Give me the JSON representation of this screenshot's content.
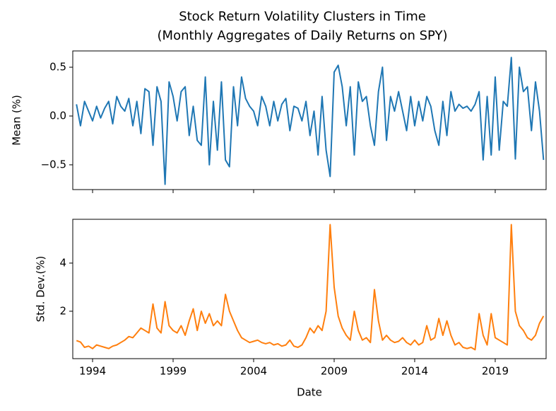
{
  "title": "Stock Return Volatility Clusters in Time",
  "subtitle": "(Monthly Aggregates of Daily Returns on SPY)",
  "chart_data": [
    {
      "type": "line",
      "ylabel": "Mean (%)",
      "x": [
        1993,
        1993.25,
        1993.5,
        1993.75,
        1994,
        1994.25,
        1994.5,
        1994.75,
        1995,
        1995.25,
        1995.5,
        1995.75,
        1996,
        1996.25,
        1996.5,
        1996.75,
        1997,
        1997.25,
        1997.5,
        1997.75,
        1998,
        1998.25,
        1998.5,
        1998.75,
        1999,
        1999.25,
        1999.5,
        1999.75,
        2000,
        2000.25,
        2000.5,
        2000.75,
        2001,
        2001.25,
        2001.5,
        2001.75,
        2002,
        2002.25,
        2002.5,
        2002.75,
        2003,
        2003.25,
        2003.5,
        2003.75,
        2004,
        2004.25,
        2004.5,
        2004.75,
        2005,
        2005.25,
        2005.5,
        2005.75,
        2006,
        2006.25,
        2006.5,
        2006.75,
        2007,
        2007.25,
        2007.5,
        2007.75,
        2008,
        2008.25,
        2008.5,
        2008.75,
        2009,
        2009.25,
        2009.5,
        2009.75,
        2010,
        2010.25,
        2010.5,
        2010.75,
        2011,
        2011.25,
        2011.5,
        2011.75,
        2012,
        2012.25,
        2012.5,
        2012.75,
        2013,
        2013.25,
        2013.5,
        2013.75,
        2014,
        2014.25,
        2014.5,
        2014.75,
        2015,
        2015.25,
        2015.5,
        2015.75,
        2016,
        2016.25,
        2016.5,
        2016.75,
        2017,
        2017.25,
        2017.5,
        2017.75,
        2018,
        2018.25,
        2018.5,
        2018.75,
        2019,
        2019.25,
        2019.5,
        2019.75,
        2020,
        2020.25,
        2020.5,
        2020.75,
        2021,
        2021.25,
        2021.5,
        2021.75,
        2022
      ],
      "series": [
        {
          "name": "Mean",
          "color": "#1f77b4",
          "values": [
            0.12,
            -0.1,
            0.15,
            0.05,
            -0.05,
            0.1,
            -0.02,
            0.08,
            0.15,
            -0.08,
            0.2,
            0.1,
            0.05,
            0.18,
            -0.1,
            0.15,
            -0.18,
            0.28,
            0.25,
            -0.3,
            0.3,
            0.15,
            -0.7,
            0.35,
            0.2,
            -0.05,
            0.25,
            0.3,
            -0.2,
            0.1,
            -0.25,
            -0.3,
            0.4,
            -0.5,
            0.15,
            -0.35,
            0.35,
            -0.45,
            -0.52,
            0.3,
            -0.1,
            0.4,
            0.18,
            0.1,
            0.05,
            -0.1,
            0.2,
            0.1,
            -0.1,
            0.15,
            -0.05,
            0.12,
            0.18,
            -0.15,
            0.1,
            0.08,
            -0.05,
            0.15,
            -0.2,
            0.05,
            -0.4,
            0.2,
            -0.35,
            -0.62,
            0.45,
            0.52,
            0.3,
            -0.1,
            0.3,
            -0.4,
            0.35,
            0.15,
            0.2,
            -0.1,
            -0.3,
            0.25,
            0.5,
            -0.25,
            0.2,
            0.05,
            0.25,
            0.05,
            -0.15,
            0.2,
            -0.1,
            0.15,
            -0.05,
            0.2,
            0.1,
            -0.15,
            -0.3,
            0.15,
            -0.2,
            0.25,
            0.05,
            0.12,
            0.08,
            0.1,
            0.05,
            0.12,
            0.25,
            -0.45,
            0.2,
            -0.4,
            0.4,
            -0.35,
            0.15,
            0.1,
            0.6,
            -0.44,
            0.5,
            0.25,
            0.3,
            -0.15,
            0.35,
            0.05,
            -0.45
          ]
        }
      ],
      "xlim": [
        1992.77,
        2022.16
      ],
      "xticks": [
        1994,
        1999,
        2004,
        2009,
        2014,
        2019
      ],
      "ylim": [
        -0.754,
        0.667
      ],
      "yticks": [
        {
          "value": -0.5,
          "label": "−0.5"
        },
        {
          "value": 0,
          "label": "0.0"
        },
        0.5
      ]
    },
    {
      "type": "line",
      "ylabel": "Std. Dev.(%)",
      "xlabel": "Date",
      "x": [
        1993,
        1993.25,
        1993.5,
        1993.75,
        1994,
        1994.25,
        1994.5,
        1994.75,
        1995,
        1995.25,
        1995.5,
        1995.75,
        1996,
        1996.25,
        1996.5,
        1996.75,
        1997,
        1997.25,
        1997.5,
        1997.75,
        1998,
        1998.25,
        1998.5,
        1998.75,
        1999,
        1999.25,
        1999.5,
        1999.75,
        2000,
        2000.25,
        2000.5,
        2000.75,
        2001,
        2001.25,
        2001.5,
        2001.75,
        2002,
        2002.25,
        2002.5,
        2002.75,
        2003,
        2003.25,
        2003.5,
        2003.75,
        2004,
        2004.25,
        2004.5,
        2004.75,
        2005,
        2005.25,
        2005.5,
        2005.75,
        2006,
        2006.25,
        2006.5,
        2006.75,
        2007,
        2007.25,
        2007.5,
        2007.75,
        2008,
        2008.25,
        2008.5,
        2008.75,
        2009,
        2009.25,
        2009.5,
        2009.75,
        2010,
        2010.25,
        2010.5,
        2010.75,
        2011,
        2011.25,
        2011.5,
        2011.75,
        2012,
        2012.25,
        2012.5,
        2012.75,
        2013,
        2013.25,
        2013.5,
        2013.75,
        2014,
        2014.25,
        2014.5,
        2014.75,
        2015,
        2015.25,
        2015.5,
        2015.75,
        2016,
        2016.25,
        2016.5,
        2016.75,
        2017,
        2017.25,
        2017.5,
        2017.75,
        2018,
        2018.25,
        2018.5,
        2018.75,
        2019,
        2019.25,
        2019.5,
        2019.75,
        2020,
        2020.25,
        2020.5,
        2020.75,
        2021,
        2021.25,
        2021.5,
        2021.75,
        2022
      ],
      "series": [
        {
          "name": "Std. Dev.",
          "color": "#ff7f0e",
          "values": [
            0.78,
            0.72,
            0.5,
            0.55,
            0.45,
            0.6,
            0.55,
            0.5,
            0.45,
            0.55,
            0.6,
            0.7,
            0.8,
            0.95,
            0.9,
            1.1,
            1.3,
            1.2,
            1.1,
            2.3,
            1.3,
            1.1,
            2.4,
            1.4,
            1.2,
            1.1,
            1.4,
            1.0,
            1.6,
            2.1,
            1.2,
            2.0,
            1.5,
            1.9,
            1.4,
            1.6,
            1.4,
            2.7,
            2.0,
            1.6,
            1.2,
            0.9,
            0.8,
            0.7,
            0.75,
            0.8,
            0.7,
            0.65,
            0.7,
            0.6,
            0.65,
            0.55,
            0.6,
            0.8,
            0.55,
            0.5,
            0.6,
            0.9,
            1.3,
            1.1,
            1.4,
            1.2,
            2.0,
            5.6,
            3.0,
            1.8,
            1.3,
            1.0,
            0.8,
            2.0,
            1.2,
            0.8,
            0.9,
            0.7,
            2.9,
            1.6,
            0.8,
            1.0,
            0.8,
            0.7,
            0.75,
            0.9,
            0.7,
            0.6,
            0.8,
            0.6,
            0.7,
            1.4,
            0.8,
            0.9,
            1.7,
            1.0,
            1.6,
            1.0,
            0.6,
            0.7,
            0.5,
            0.45,
            0.5,
            0.4,
            1.9,
            1.0,
            0.6,
            1.9,
            0.9,
            0.8,
            0.7,
            0.6,
            5.6,
            2.0,
            1.4,
            1.2,
            0.9,
            0.8,
            1.0,
            1.5,
            1.8
          ]
        }
      ],
      "xlim": [
        1992.77,
        2022.16
      ],
      "xticks": [
        1994,
        1999,
        2004,
        2009,
        2014,
        2019
      ],
      "ylim": [
        0.03,
        5.82
      ],
      "yticks": [
        2,
        4
      ]
    }
  ]
}
